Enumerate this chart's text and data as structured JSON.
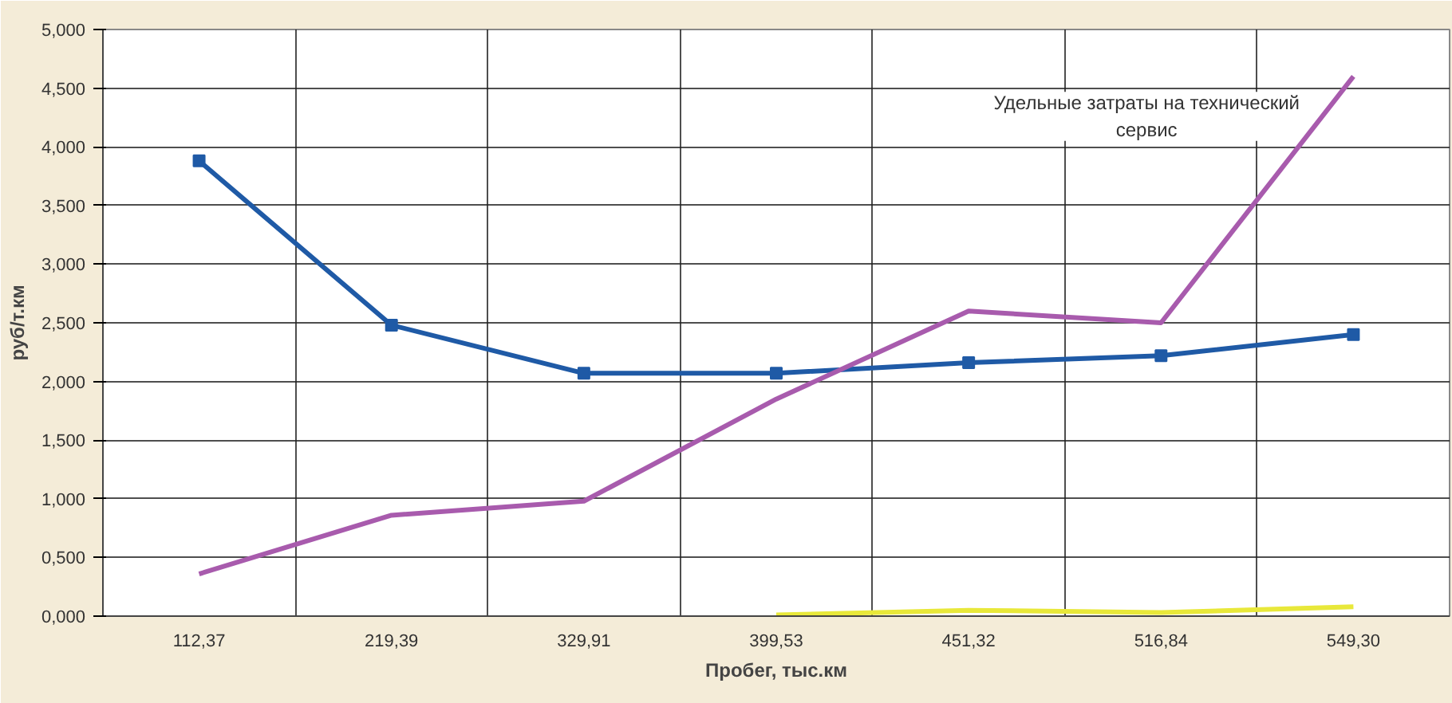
{
  "chart_data": {
    "type": "line",
    "xlabel": "Пробег, тыс.км",
    "ylabel": "руб/т.км",
    "categories": [
      "112,37",
      "219,39",
      "329,91",
      "399,53",
      "451,32",
      "516,84",
      "549,30"
    ],
    "series": [
      {
        "color": "#1f5aa6",
        "marker": "square",
        "values": [
          3.88,
          2.48,
          2.07,
          2.07,
          2.16,
          2.22,
          2.4
        ]
      },
      {
        "color": "#a85bad",
        "marker": "none",
        "values": [
          0.36,
          0.86,
          0.98,
          1.85,
          2.6,
          2.5,
          4.6
        ]
      },
      {
        "color": "#e8e83a",
        "marker": "none",
        "values": [
          null,
          null,
          null,
          0.01,
          0.05,
          0.03,
          0.08
        ]
      }
    ],
    "ylim": [
      0,
      5
    ],
    "yticks": [
      {
        "value": 0,
        "label": "0,000"
      },
      {
        "value": 0.5,
        "label": "0,500"
      },
      {
        "value": 1,
        "label": "1,000"
      },
      {
        "value": 1.5,
        "label": "1,500"
      },
      {
        "value": 2,
        "label": "2,000"
      },
      {
        "value": 2.5,
        "label": "2,500"
      },
      {
        "value": 3,
        "label": "3,000"
      },
      {
        "value": 3.5,
        "label": "3,500"
      },
      {
        "value": 4,
        "label": "4,000"
      },
      {
        "value": 4.5,
        "label": "4,500"
      },
      {
        "value": 5,
        "label": "5,000"
      }
    ],
    "annotations": [
      "Удельные затраты на технический сервис"
    ],
    "grid": true
  }
}
